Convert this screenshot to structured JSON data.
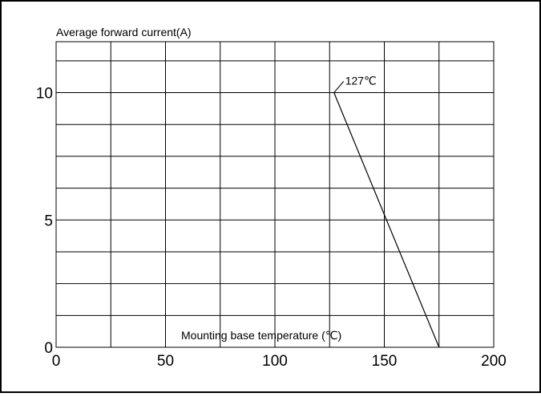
{
  "chart_data": {
    "type": "line",
    "ylabel": "Average forward current(A)",
    "xlabel": "Mounting base temperature (℃)",
    "xlim": [
      0,
      200
    ],
    "ylim": [
      0,
      12
    ],
    "x_ticks": [
      0,
      50,
      100,
      150,
      200
    ],
    "y_ticks": [
      0,
      5,
      10
    ],
    "x_grid_step": 25,
    "y_grid_step": 1.25,
    "grid": true,
    "series": [
      {
        "x": [
          127,
          175
        ],
        "y": [
          10,
          0
        ]
      }
    ],
    "annotations": [
      {
        "text": "127℃",
        "x": 127,
        "y": 10
      }
    ]
  }
}
